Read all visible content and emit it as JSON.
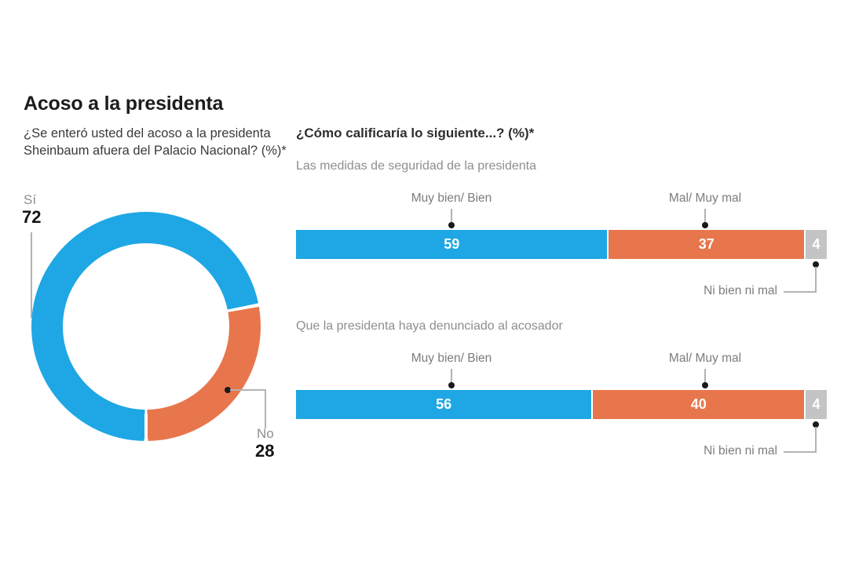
{
  "title": "Acoso a la presidenta",
  "left_question": "¿Se enteró usted del acoso a la presidenta Sheinbaum afuera del Palacio Nacional? (%)*",
  "right_question": "¿Cómo calificaría lo siguiente...? (%)*",
  "colors": {
    "blue": "#1EA7E4",
    "orange": "#E8764C",
    "gray": "#C4C4C5"
  },
  "chart_data": [
    {
      "type": "pie",
      "donut": true,
      "title": "¿Se enteró usted del acoso a la presidenta Sheinbaum afuera del Palacio Nacional? (%)*",
      "categories": [
        "Sí",
        "No"
      ],
      "values": [
        72,
        28
      ],
      "colors": [
        "#1EA7E4",
        "#E8764C"
      ],
      "start_angle_deg": 180,
      "direction": "clockwise"
    },
    {
      "type": "bar",
      "stacked": true,
      "orientation": "horizontal",
      "title": "¿Cómo calificaría lo siguiente...? (%)*",
      "categories": [
        "Las medidas de seguridad de la presidenta",
        "Que la presidenta haya denunciado al acosador"
      ],
      "series": [
        {
          "name": "Muy bien/ Bien",
          "values": [
            59,
            56
          ],
          "color": "#1EA7E4"
        },
        {
          "name": "Mal/ Muy mal",
          "values": [
            37,
            40
          ],
          "color": "#E8764C"
        },
        {
          "name": "Ni bien ni mal",
          "values": [
            4,
            4
          ],
          "color": "#C4C4C5"
        }
      ],
      "xlim": [
        0,
        100
      ],
      "value_labels": "inside-white-bold",
      "grid": false,
      "legend_position": "above-and-below-pointers"
    }
  ]
}
